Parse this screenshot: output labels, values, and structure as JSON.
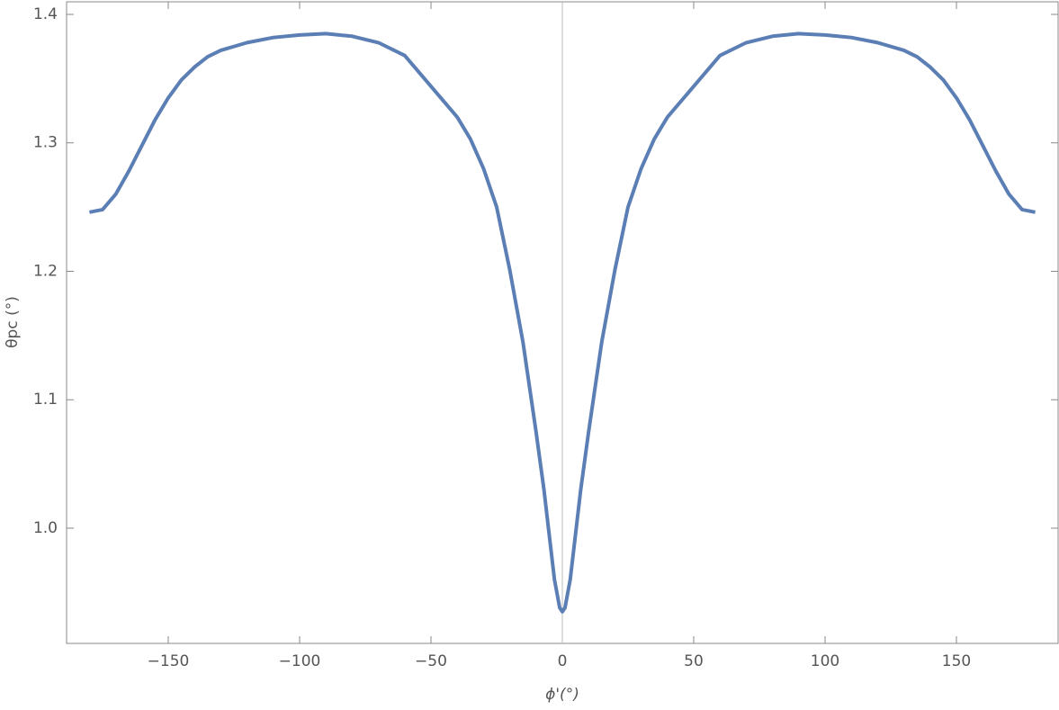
{
  "chart_data": {
    "type": "line",
    "x_label": "ϕ'(°)",
    "y_label": "θpc (°)",
    "x": [
      -180,
      -175,
      -170,
      -165,
      -160,
      -155,
      -150,
      -145,
      -140,
      -135,
      -130,
      -120,
      -110,
      -100,
      -90,
      -80,
      -70,
      -60,
      -50,
      -40,
      -35,
      -30,
      -25,
      -20,
      -15,
      -10,
      -7,
      -5,
      -3,
      -1,
      0,
      1,
      3,
      5,
      7,
      10,
      15,
      20,
      25,
      30,
      35,
      40,
      50,
      60,
      70,
      80,
      90,
      100,
      110,
      120,
      130,
      135,
      140,
      145,
      150,
      155,
      160,
      165,
      170,
      175,
      180
    ],
    "values": [
      1.246,
      1.248,
      1.26,
      1.278,
      1.298,
      1.318,
      1.335,
      1.349,
      1.359,
      1.367,
      1.372,
      1.378,
      1.382,
      1.384,
      1.385,
      1.383,
      1.378,
      1.368,
      1.344,
      1.32,
      1.303,
      1.28,
      1.25,
      1.201,
      1.145,
      1.075,
      1.03,
      0.995,
      0.96,
      0.938,
      0.935,
      0.938,
      0.96,
      0.995,
      1.03,
      1.075,
      1.145,
      1.201,
      1.25,
      1.28,
      1.303,
      1.32,
      1.344,
      1.368,
      1.378,
      1.383,
      1.385,
      1.384,
      1.382,
      1.378,
      1.372,
      1.367,
      1.359,
      1.349,
      1.335,
      1.318,
      1.298,
      1.278,
      1.26,
      1.248,
      1.246
    ],
    "color": "#5b7fb5",
    "xlim": [
      -188.7,
      188.7
    ],
    "xticks": [
      {
        "value": -150,
        "label": "−150"
      },
      {
        "value": -100,
        "label": "−100"
      },
      {
        "value": -50,
        "label": "−50"
      },
      0,
      50,
      100,
      150
    ],
    "ylim": [
      0.9103,
      1.4098
    ],
    "yticks": [
      {
        "value": 1,
        "label": "1.0"
      },
      1.1,
      1.2,
      1.3,
      1.4
    ]
  }
}
